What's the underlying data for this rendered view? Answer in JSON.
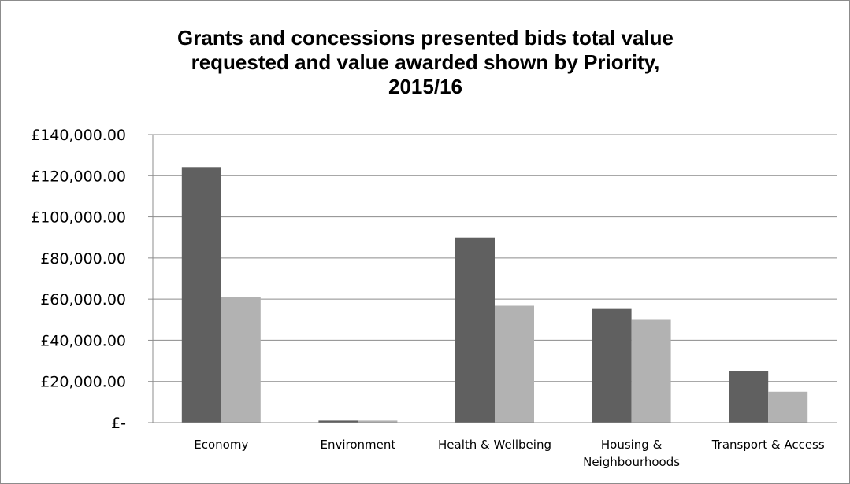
{
  "chart_data": {
    "type": "bar",
    "title": "Grants and concessions presented bids total value\nrequested and value awarded shown by Priority,\n2015/16",
    "xlabel": "",
    "ylabel": "",
    "ylim": [
      0,
      140000
    ],
    "yticks": [
      {
        "value": 0,
        "label": "£-"
      },
      {
        "value": 20000,
        "label": "£20,000.00"
      },
      {
        "value": 40000,
        "label": "£40,000.00"
      },
      {
        "value": 60000,
        "label": "£60,000.00"
      },
      {
        "value": 80000,
        "label": "£80,000.00"
      },
      {
        "value": 100000,
        "label": "£100,000.00"
      },
      {
        "value": 120000,
        "label": "£120,000.00"
      },
      {
        "value": 140000,
        "label": "£140,000.00"
      }
    ],
    "categories": [
      [
        "Economy"
      ],
      [
        "Environment"
      ],
      [
        "Health & Wellbeing"
      ],
      [
        "Housing &",
        "Neighbourhoods"
      ],
      [
        "Transport & Access"
      ]
    ],
    "grid": true,
    "legend": "none",
    "series": [
      {
        "values": [
          124200,
          1000,
          90000,
          55600,
          24900
        ],
        "color": "#606060"
      },
      {
        "values": [
          61000,
          1000,
          56800,
          50300,
          15000
        ],
        "color": "#b2b2b2"
      }
    ]
  }
}
